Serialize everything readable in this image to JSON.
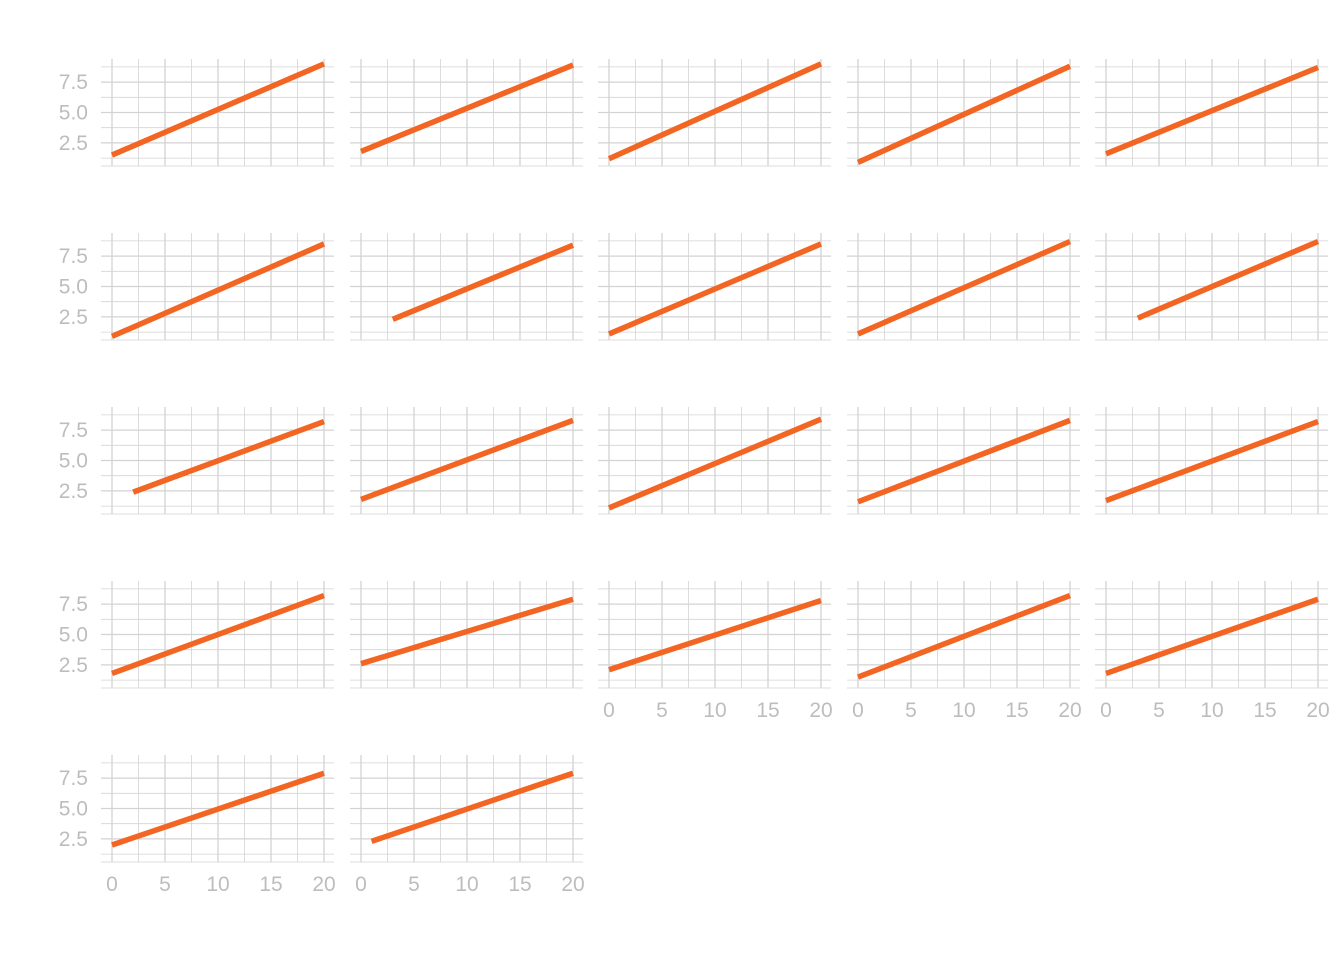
{
  "chart_data": {
    "type": "line",
    "layout": "small-multiples",
    "rows": 5,
    "cols": 5,
    "xlim": [
      0,
      20
    ],
    "ylim": [
      0.6,
      9.4
    ],
    "x_ticks": [
      "0",
      "5",
      "10",
      "15",
      "20"
    ],
    "y_ticks": [
      "2.5",
      "5.0",
      "7.5"
    ],
    "y_tick_values": [
      2.5,
      5.0,
      7.5
    ],
    "x_tick_values": [
      0,
      5,
      10,
      15,
      20
    ],
    "grid": true,
    "line_color": "#f26522",
    "grid_color": "#d3d3d3",
    "tick_color": "#bdbdbd",
    "panels": [
      {
        "x": [
          0,
          20
        ],
        "y": [
          1.5,
          9.0
        ]
      },
      {
        "x": [
          0,
          20
        ],
        "y": [
          1.8,
          8.9
        ]
      },
      {
        "x": [
          0,
          20
        ],
        "y": [
          1.2,
          9.0
        ]
      },
      {
        "x": [
          0,
          20
        ],
        "y": [
          0.9,
          8.8
        ]
      },
      {
        "x": [
          0,
          20
        ],
        "y": [
          1.6,
          8.7
        ]
      },
      {
        "x": [
          0,
          20
        ],
        "y": [
          0.9,
          8.5
        ]
      },
      {
        "x": [
          3,
          20
        ],
        "y": [
          2.3,
          8.4
        ]
      },
      {
        "x": [
          0,
          20
        ],
        "y": [
          1.1,
          8.5
        ]
      },
      {
        "x": [
          0,
          20
        ],
        "y": [
          1.1,
          8.7
        ]
      },
      {
        "x": [
          3,
          20
        ],
        "y": [
          2.4,
          8.7
        ]
      },
      {
        "x": [
          2,
          20
        ],
        "y": [
          2.4,
          8.2
        ]
      },
      {
        "x": [
          0,
          20
        ],
        "y": [
          1.8,
          8.3
        ]
      },
      {
        "x": [
          0,
          20
        ],
        "y": [
          1.1,
          8.4
        ]
      },
      {
        "x": [
          0,
          20
        ],
        "y": [
          1.6,
          8.3
        ]
      },
      {
        "x": [
          0,
          20
        ],
        "y": [
          1.7,
          8.2
        ]
      },
      {
        "x": [
          0,
          20
        ],
        "y": [
          1.8,
          8.2
        ]
      },
      {
        "x": [
          0,
          20
        ],
        "y": [
          2.6,
          7.9
        ]
      },
      {
        "x": [
          0,
          20
        ],
        "y": [
          2.1,
          7.8
        ]
      },
      {
        "x": [
          0,
          20
        ],
        "y": [
          1.5,
          8.2
        ]
      },
      {
        "x": [
          0,
          20
        ],
        "y": [
          1.8,
          7.9
        ]
      },
      {
        "x": [
          0,
          20
        ],
        "y": [
          2.0,
          7.9
        ]
      },
      {
        "x": [
          1,
          20
        ],
        "y": [
          2.3,
          7.9
        ]
      }
    ]
  }
}
